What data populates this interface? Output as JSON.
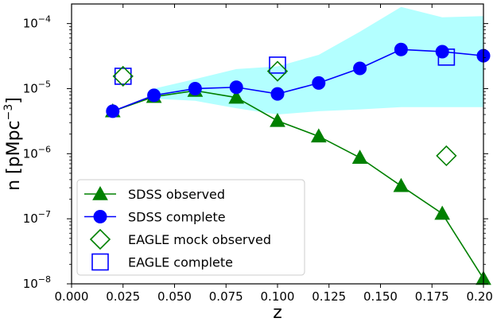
{
  "chart_data": {
    "type": "line",
    "xlabel": "z",
    "ylabel_main": "n [pMpc",
    "ylabel_sup": "−3",
    "ylabel_close": "]",
    "xlim": [
      0.0,
      0.2
    ],
    "ylim": [
      1e-08,
      0.0002
    ],
    "yscale": "log",
    "grid": false,
    "legend_position": "lower-left",
    "x_ticks": [
      "0.000",
      "0.025",
      "0.050",
      "0.075",
      "0.100",
      "0.125",
      "0.150",
      "0.175",
      "0.200"
    ],
    "y_ticks": [
      {
        "base": "10",
        "exp": "−8",
        "value": 1e-08
      },
      {
        "base": "10",
        "exp": "−7",
        "value": 1e-07
      },
      {
        "base": "10",
        "exp": "−6",
        "value": 1e-06
      },
      {
        "base": "10",
        "exp": "−5",
        "value": 1e-05
      },
      {
        "base": "10",
        "exp": "−4",
        "value": 0.0001
      }
    ],
    "band": {
      "color": "#b3ffff",
      "x": [
        0.04,
        0.06,
        0.08,
        0.1,
        0.12,
        0.14,
        0.16,
        0.18,
        0.2
      ],
      "lower": [
        7e-06,
        6.5e-06,
        5e-06,
        4e-06,
        4.5e-06,
        4.8e-06,
        5.2e-06,
        5.2e-06,
        5.2e-06
      ],
      "upper": [
        1e-05,
        1.4e-05,
        2e-05,
        2.2e-05,
        3.3e-05,
        7.5e-05,
        0.00018,
        0.000125,
        0.00013
      ]
    },
    "series": [
      {
        "name": "SDSS observed",
        "marker": "triangle",
        "color": "#008000",
        "x": [
          0.02,
          0.04,
          0.06,
          0.08,
          0.1,
          0.12,
          0.14,
          0.16,
          0.18,
          0.2
        ],
        "y": [
          4.5e-06,
          7.5e-06,
          9.3e-06,
          7.3e-06,
          3.2e-06,
          1.85e-06,
          8.7e-07,
          3.2e-07,
          1.2e-07,
          1.2e-08
        ]
      },
      {
        "name": "SDSS complete",
        "marker": "circle",
        "color": "#0000ff",
        "x": [
          0.02,
          0.04,
          0.06,
          0.08,
          0.1,
          0.12,
          0.14,
          0.16,
          0.18,
          0.2
        ],
        "y": [
          4.5e-06,
          7.9e-06,
          1e-05,
          1.05e-05,
          8.3e-06,
          1.22e-05,
          2.05e-05,
          4e-05,
          3.7e-05,
          3.2e-05
        ]
      },
      {
        "name": "EAGLE mock observed",
        "marker": "diamond-open",
        "color": "#008000",
        "x": [
          0.025,
          0.1,
          0.182
        ],
        "y": [
          1.55e-05,
          1.85e-05,
          9.3e-07
        ]
      },
      {
        "name": "EAGLE complete",
        "marker": "square-open",
        "color": "#0000ff",
        "x": [
          0.025,
          0.1,
          0.182
        ],
        "y": [
          1.55e-05,
          2.3e-05,
          3.05e-05
        ]
      }
    ]
  }
}
